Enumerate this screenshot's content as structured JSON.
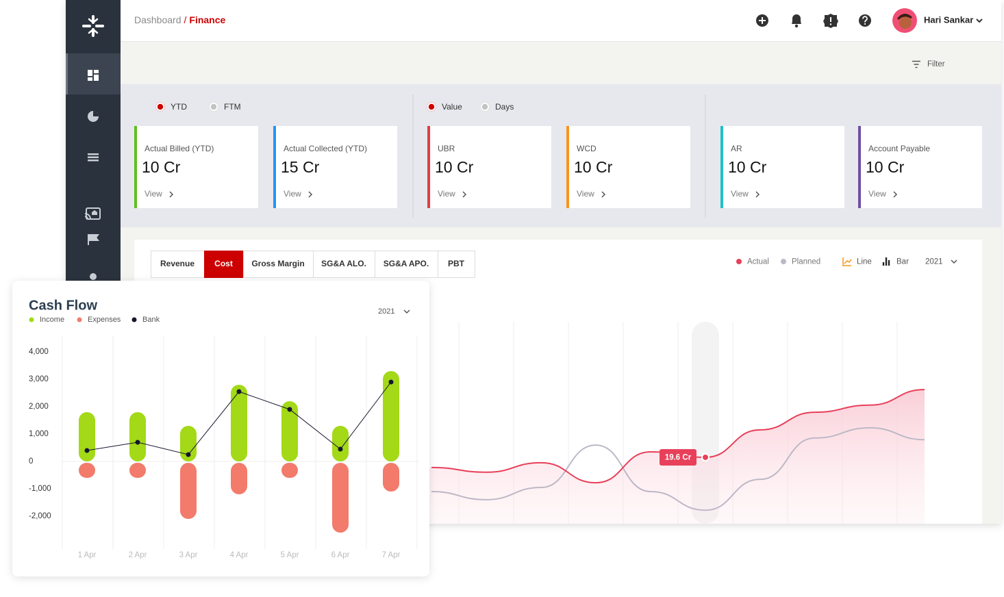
{
  "header": {
    "breadcrumb": {
      "parent": "Dashboard",
      "separator": "/",
      "current": "Finance"
    },
    "user": "Hari Sankar"
  },
  "toolbar": {
    "filter": "Filter"
  },
  "kpi": {
    "toggles": [
      [
        {
          "label": "YTD",
          "selected": true
        },
        {
          "label": "FTM",
          "selected": false
        }
      ],
      [
        {
          "label": "Value",
          "selected": true
        },
        {
          "label": "Days",
          "selected": false
        }
      ]
    ],
    "cards": [
      {
        "label": "Actual Billed (YTD)",
        "value": "10 Cr",
        "link": "View",
        "color": "#5bc11d"
      },
      {
        "label": "Actual Collected (YTD)",
        "value": "15 Cr",
        "link": "View",
        "color": "#2196f3"
      },
      {
        "label": "UBR",
        "value": "10 Cr",
        "link": "View",
        "color": "#e53945"
      },
      {
        "label": "WCD",
        "value": "10 Cr",
        "link": "View",
        "color": "#f7941d"
      },
      {
        "label": "AR",
        "value": "10 Cr",
        "link": "View",
        "color": "#1fc0c8"
      },
      {
        "label": "Account Payable",
        "value": "10 Cr",
        "link": "View",
        "color": "#6f4fa3"
      }
    ]
  },
  "chart_data": [
    {
      "type": "line",
      "tabs": [
        {
          "label": "Revenue",
          "active": false
        },
        {
          "label": "Cost",
          "active": true
        },
        {
          "label": "Gross Margin",
          "active": false
        },
        {
          "label": "SG&A ALO.",
          "active": false
        },
        {
          "label": "SG&A APO.",
          "active": false
        },
        {
          "label": "PBT",
          "active": false
        }
      ],
      "views": [
        "Line",
        "Bar"
      ],
      "year": "2021",
      "series": [
        {
          "name": "Actual",
          "color": "#e8405a",
          "values": [
            16.6,
            15.2,
            18,
            12.1,
            21.2,
            19.6,
            27.7,
            32.9,
            35,
            39.6
          ],
          "value_labels": [
            null,
            null,
            null,
            null,
            null,
            "19.6 Cr",
            null,
            null,
            null,
            null
          ]
        },
        {
          "name": "Planned",
          "color": "#bdb8c6",
          "values": [
            9.5,
            7.1,
            10.7,
            23.2,
            9.5,
            4,
            13.1,
            25.3,
            28.3,
            24.8
          ]
        }
      ],
      "ylim": [
        0,
        40
      ],
      "area": true
    },
    {
      "type": "bar",
      "title": "Cash Flow",
      "year": "2021",
      "categories": [
        "1 Apr",
        "2 Apr",
        "3 Apr",
        "4 Apr",
        "5 Apr",
        "6 Apr",
        "7 Apr"
      ],
      "series": [
        {
          "name": "Income",
          "color": "#a3d917",
          "type": "bar",
          "values": [
            1800,
            1800,
            1300,
            2800,
            2200,
            1300,
            3300
          ]
        },
        {
          "name": "Expenses",
          "color": "#f27b6c",
          "type": "bar",
          "values": [
            -600,
            -600,
            -2100,
            -1200,
            -600,
            -2600,
            -1100
          ]
        },
        {
          "name": "Bank",
          "color": "#16162e",
          "type": "line",
          "values": [
            400,
            700,
            250,
            2550,
            1900,
            450,
            2900
          ]
        }
      ],
      "ylim": [
        -3200,
        4600
      ],
      "yticks": [
        {
          "value": 4000,
          "label": "4,000"
        },
        {
          "value": 3000,
          "label": "3,000"
        },
        {
          "value": 2000,
          "label": "2,000"
        },
        {
          "value": 1000,
          "label": "1,000"
        },
        0,
        {
          "value": -1000,
          "label": "-1,000"
        },
        {
          "value": -2000,
          "label": "-2,000"
        }
      ],
      "grid": true
    }
  ]
}
